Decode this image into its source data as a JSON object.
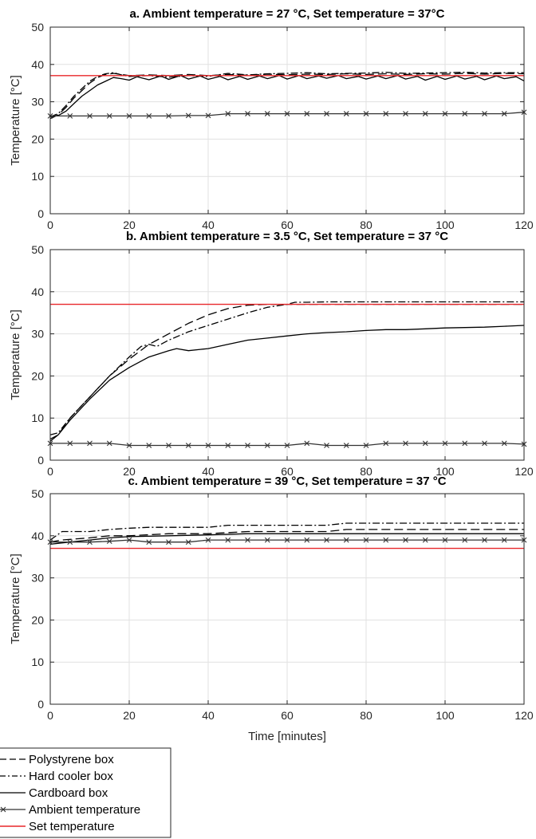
{
  "colors": {
    "series_black": "#000000",
    "ambient": "#333333",
    "set_temperature": "#e8272a",
    "grid": "#e1e1e1",
    "axis": "#262626"
  },
  "chart_data": [
    {
      "type": "line",
      "title": "a. Ambient temperature = 27 °C, Set temperature = 37°C",
      "xlabel": "",
      "ylabel": "Temperature [°C]",
      "xlim": [
        0,
        120
      ],
      "ylim": [
        0,
        50
      ],
      "xticks": [
        0,
        20,
        40,
        60,
        80,
        100,
        120
      ],
      "yticks": [
        0,
        10,
        20,
        30,
        40,
        50
      ],
      "grid": true,
      "series": [
        {
          "name": "Polystyrene box",
          "style": "dashed",
          "x": [
            0,
            2,
            4,
            6,
            8,
            10,
            12,
            14,
            16,
            18,
            20,
            25,
            30,
            35,
            40,
            45,
            50,
            55,
            60,
            65,
            70,
            75,
            80,
            85,
            90,
            95,
            100,
            105,
            110,
            115,
            120
          ],
          "y": [
            25.5,
            26.5,
            28.5,
            31,
            33,
            35,
            36.5,
            37.3,
            37.6,
            37.3,
            37,
            37.2,
            37,
            37.3,
            37,
            37.3,
            37.1,
            37.4,
            37.2,
            37.4,
            37.3,
            37.5,
            37.3,
            37.5,
            37.3,
            37.5,
            37.4,
            37.6,
            37.4,
            37.6,
            37.5
          ]
        },
        {
          "name": "Hard cooler box",
          "style": "dashdot",
          "x": [
            0,
            2,
            4,
            6,
            8,
            10,
            12,
            14,
            16,
            18,
            20,
            25,
            30,
            35,
            40,
            45,
            50,
            55,
            60,
            65,
            70,
            75,
            80,
            85,
            90,
            95,
            100,
            105,
            110,
            115,
            120
          ],
          "y": [
            26,
            26.8,
            29,
            31.5,
            33.5,
            35.5,
            36.8,
            37.5,
            37.8,
            37.2,
            36.8,
            37,
            36.6,
            37,
            36.8,
            37.6,
            37.2,
            37.5,
            37.6,
            37.8,
            37.5,
            37.6,
            37.7,
            37.9,
            37.6,
            37.7,
            37.8,
            37.9,
            37.7,
            37.8,
            37.8
          ]
        },
        {
          "name": "Cardboard box",
          "style": "solid",
          "x": [
            0,
            2,
            4,
            6,
            8,
            10,
            12,
            14,
            16,
            18,
            20,
            22,
            25,
            28,
            30,
            33,
            35,
            38,
            40,
            43,
            45,
            48,
            50,
            53,
            55,
            58,
            60,
            63,
            65,
            68,
            70,
            73,
            75,
            78,
            80,
            83,
            85,
            88,
            90,
            93,
            95,
            98,
            100,
            103,
            105,
            108,
            110,
            113,
            115,
            118,
            120
          ],
          "y": [
            26,
            26.3,
            27.5,
            29.5,
            31.5,
            33,
            34.5,
            35.5,
            36.5,
            36.2,
            35.8,
            36.7,
            35.9,
            36.9,
            36,
            37,
            36.1,
            36.9,
            36,
            36.8,
            35.9,
            36.8,
            36,
            36.9,
            36.2,
            37,
            36.1,
            37,
            36.2,
            36.9,
            36.3,
            37,
            36.2,
            36.8,
            36.1,
            36.9,
            36.2,
            37,
            36.1,
            36.8,
            35.8,
            36.8,
            36,
            36.9,
            36.1,
            36.8,
            35.9,
            36.9,
            36.2,
            36.7,
            35.6
          ]
        },
        {
          "name": "Ambient temperature",
          "style": "solid-x",
          "x": [
            0,
            5,
            10,
            15,
            20,
            25,
            30,
            35,
            40,
            45,
            50,
            55,
            60,
            65,
            70,
            75,
            80,
            85,
            90,
            95,
            100,
            105,
            110,
            115,
            120
          ],
          "y": [
            26.2,
            26.2,
            26.2,
            26.2,
            26.2,
            26.2,
            26.2,
            26.3,
            26.3,
            26.8,
            26.8,
            26.8,
            26.8,
            26.8,
            26.8,
            26.8,
            26.8,
            26.8,
            26.8,
            26.8,
            26.8,
            26.8,
            26.8,
            26.8,
            27.2
          ]
        },
        {
          "name": "Set temperature",
          "style": "red",
          "x": [
            0,
            120
          ],
          "y": [
            37,
            37
          ]
        }
      ]
    },
    {
      "type": "line",
      "title": "b. Ambient temperature = 3.5 °C, Set temperature = 37 °C",
      "xlabel": "",
      "ylabel": "Temperature [°C]",
      "xlim": [
        0,
        120
      ],
      "ylim": [
        0,
        50
      ],
      "xticks": [
        0,
        20,
        40,
        60,
        80,
        100,
        120
      ],
      "yticks": [
        0,
        10,
        20,
        30,
        40,
        50
      ],
      "grid": true,
      "series": [
        {
          "name": "Polystyrene box",
          "style": "dashed",
          "x": [
            0,
            2,
            5,
            10,
            15,
            20,
            25,
            30,
            35,
            40,
            45,
            50,
            55,
            60,
            65,
            70,
            80,
            90,
            100,
            110,
            120
          ],
          "y": [
            5,
            6,
            10,
            15,
            20,
            24,
            27.5,
            30,
            32.5,
            34.5,
            36,
            36.8,
            37,
            37,
            37,
            37,
            37,
            37,
            37,
            37,
            37
          ]
        },
        {
          "name": "Hard cooler box",
          "style": "dashdot",
          "x": [
            0,
            2,
            5,
            10,
            15,
            20,
            23,
            25,
            27,
            30,
            35,
            40,
            45,
            50,
            55,
            60,
            62,
            65,
            70,
            80,
            90,
            100,
            110,
            120
          ],
          "y": [
            6,
            6.5,
            10,
            15,
            20,
            24.5,
            27,
            27.5,
            27,
            28.5,
            30.5,
            32,
            33.5,
            35,
            36.3,
            37,
            37.5,
            37.5,
            37.6,
            37.6,
            37.6,
            37.6,
            37.6,
            37.6
          ]
        },
        {
          "name": "Cardboard box",
          "style": "solid",
          "x": [
            0,
            2,
            5,
            10,
            15,
            20,
            25,
            30,
            32,
            35,
            38,
            40,
            45,
            50,
            55,
            60,
            65,
            70,
            75,
            80,
            85,
            90,
            95,
            100,
            105,
            110,
            115,
            120
          ],
          "y": [
            4.5,
            6,
            9.5,
            14.5,
            19,
            22,
            24.5,
            26,
            26.5,
            26,
            26.3,
            26.5,
            27.5,
            28.5,
            29,
            29.5,
            30,
            30.3,
            30.5,
            30.8,
            31,
            31,
            31.2,
            31.4,
            31.5,
            31.6,
            31.8,
            32
          ]
        },
        {
          "name": "Ambient temperature",
          "style": "solid-x",
          "x": [
            0,
            5,
            10,
            15,
            20,
            25,
            30,
            35,
            40,
            45,
            50,
            55,
            60,
            65,
            70,
            75,
            80,
            85,
            90,
            95,
            100,
            105,
            110,
            115,
            120
          ],
          "y": [
            4,
            4,
            4,
            4,
            3.5,
            3.5,
            3.5,
            3.5,
            3.5,
            3.5,
            3.5,
            3.5,
            3.5,
            4,
            3.5,
            3.5,
            3.5,
            4,
            4,
            4,
            4,
            4,
            4,
            4,
            3.8
          ]
        },
        {
          "name": "Set temperature",
          "style": "red",
          "x": [
            0,
            120
          ],
          "y": [
            37,
            37
          ]
        }
      ]
    },
    {
      "type": "line",
      "title": "c. Ambient temperature = 39 °C, Set temperature = 37 °C",
      "xlabel": "Time [minutes]",
      "ylabel": "Temperature [°C]",
      "xlim": [
        0,
        120
      ],
      "ylim": [
        0,
        50
      ],
      "xticks": [
        0,
        20,
        40,
        60,
        80,
        100,
        120
      ],
      "yticks": [
        0,
        10,
        20,
        30,
        40,
        50
      ],
      "grid": true,
      "series": [
        {
          "name": "Polystyrene box",
          "style": "dashed",
          "x": [
            0,
            3,
            10,
            15,
            20,
            30,
            40,
            50,
            60,
            70,
            75,
            80,
            90,
            100,
            110,
            120
          ],
          "y": [
            38.5,
            39,
            39.5,
            40,
            40,
            40.5,
            40.5,
            41,
            41,
            41,
            41.5,
            41.5,
            41.5,
            41.5,
            41.5,
            41.5
          ]
        },
        {
          "name": "Hard cooler box",
          "style": "dashdot",
          "x": [
            0,
            3,
            10,
            15,
            20,
            25,
            30,
            35,
            40,
            45,
            50,
            60,
            70,
            75,
            80,
            90,
            100,
            110,
            120
          ],
          "y": [
            39,
            41,
            41,
            41.5,
            41.8,
            42,
            42,
            42,
            42,
            42.5,
            42.5,
            42.5,
            42.5,
            43,
            43,
            43,
            43,
            43,
            43
          ]
        },
        {
          "name": "Cardboard box",
          "style": "solid",
          "x": [
            0,
            5,
            10,
            15,
            20,
            30,
            40,
            50,
            60,
            70,
            80,
            90,
            100,
            110,
            120
          ],
          "y": [
            38,
            38.5,
            39,
            39.5,
            39.8,
            40,
            40.2,
            40.5,
            40.5,
            40.5,
            40.5,
            40.5,
            40.5,
            40.5,
            40.5
          ]
        },
        {
          "name": "Ambient temperature",
          "style": "solid-x",
          "x": [
            0,
            5,
            10,
            15,
            20,
            25,
            30,
            35,
            40,
            45,
            50,
            55,
            60,
            65,
            70,
            75,
            80,
            85,
            90,
            95,
            100,
            105,
            110,
            115,
            120
          ],
          "y": [
            38.5,
            38.5,
            38.5,
            38.7,
            39,
            38.5,
            38.5,
            38.5,
            39,
            39,
            39,
            39,
            39,
            39,
            39,
            39,
            39,
            39,
            39,
            39,
            39,
            39,
            39,
            39,
            39
          ]
        },
        {
          "name": "Set temperature",
          "style": "red",
          "x": [
            0,
            120
          ],
          "y": [
            37,
            37
          ]
        }
      ]
    }
  ],
  "legend": {
    "placement": "bottom-left",
    "items": [
      {
        "label": "Polystyrene box",
        "style": "dashed"
      },
      {
        "label": "Hard cooler box",
        "style": "dashdot"
      },
      {
        "label": "Cardboard box",
        "style": "solid"
      },
      {
        "label": "Ambient temperature",
        "style": "solid-x"
      },
      {
        "label": "Set temperature",
        "style": "red"
      }
    ]
  }
}
